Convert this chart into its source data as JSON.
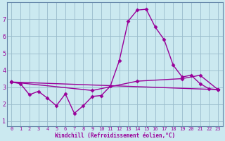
{
  "xlabel": "Windchill (Refroidissement éolien,°C)",
  "background_color": "#cbe9f0",
  "grid_color": "#99bbcc",
  "line_color": "#990099",
  "spine_color": "#6688aa",
  "xlim": [
    -0.5,
    23.5
  ],
  "ylim": [
    0.7,
    8.0
  ],
  "yticks": [
    1,
    2,
    3,
    4,
    5,
    6,
    7
  ],
  "xticks": [
    0,
    1,
    2,
    3,
    4,
    5,
    6,
    7,
    8,
    9,
    10,
    11,
    12,
    13,
    14,
    15,
    16,
    17,
    18,
    19,
    20,
    21,
    22,
    23
  ],
  "curve1_x": [
    0,
    1,
    2,
    3,
    4,
    5,
    6,
    7,
    8,
    9,
    10,
    11,
    12,
    13,
    14,
    15,
    16,
    17,
    18,
    19,
    20,
    21,
    22,
    23
  ],
  "curve1_y": [
    3.3,
    3.2,
    2.55,
    2.75,
    2.35,
    1.9,
    2.6,
    1.45,
    1.9,
    2.45,
    2.5,
    3.05,
    4.55,
    6.9,
    7.55,
    7.6,
    6.55,
    5.8,
    4.3,
    3.6,
    3.7,
    3.2,
    2.9,
    2.85
  ],
  "curve2_x": [
    0,
    23
  ],
  "curve2_y": [
    3.3,
    2.85
  ],
  "curve3_x": [
    0,
    9,
    14,
    19,
    21,
    23
  ],
  "curve3_y": [
    3.3,
    2.8,
    3.35,
    3.5,
    3.7,
    2.85
  ],
  "marker": "D",
  "markersize": 2.5,
  "linewidth": 1.0
}
